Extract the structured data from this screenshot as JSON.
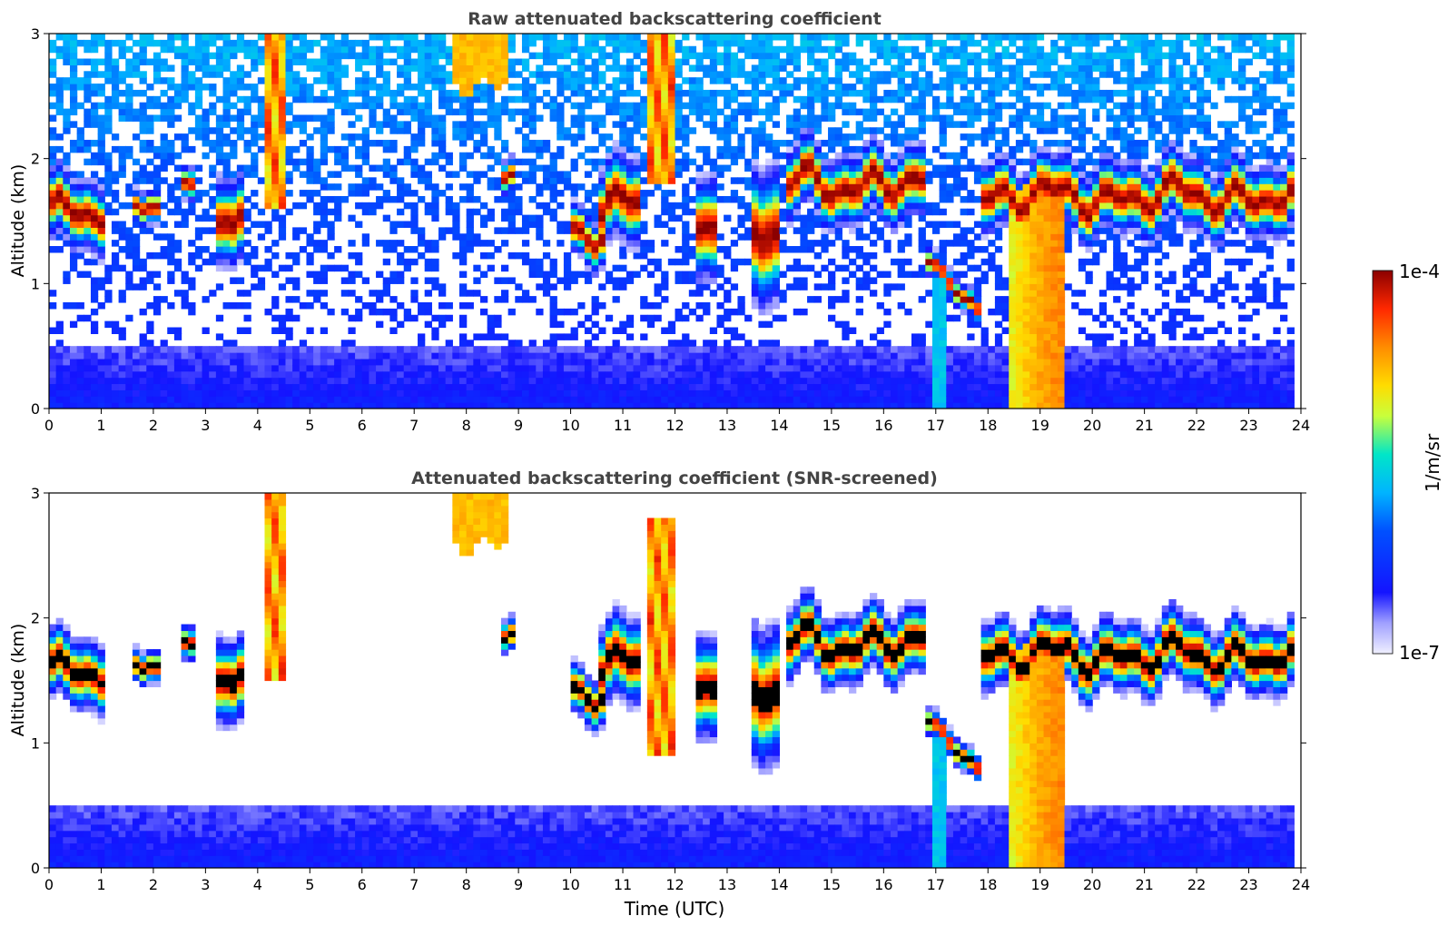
{
  "chart_data": [
    {
      "type": "heatmap",
      "title": "Raw attenuated backscattering coefficient",
      "xlabel": "",
      "ylabel": "Altitude (km)",
      "xlim": [
        0,
        24
      ],
      "ylim": [
        0,
        3
      ],
      "xticks": [
        "0",
        "1",
        "2",
        "3",
        "4",
        "5",
        "6",
        "7",
        "8",
        "9",
        "10",
        "11",
        "12",
        "13",
        "14",
        "15",
        "16",
        "17",
        "18",
        "19",
        "20",
        "21",
        "22",
        "23",
        "24"
      ],
      "yticks": [
        "0",
        "1",
        "2",
        "3"
      ],
      "data_end_hour": 23.8,
      "features": [
        {
          "kind": "cloud_layer",
          "hours": [
            0.0,
            1.1
          ],
          "altitude_km": [
            1.4,
            1.8
          ]
        },
        {
          "kind": "cloud_layer",
          "hours": [
            1.6,
            2.1
          ],
          "altitude_km": [
            1.5,
            1.7
          ]
        },
        {
          "kind": "cloud_layer",
          "hours": [
            2.5,
            2.8
          ],
          "altitude_km": [
            1.6,
            1.8
          ]
        },
        {
          "kind": "cloud_layer",
          "hours": [
            3.2,
            3.7
          ],
          "altitude_km": [
            1.3,
            1.8
          ]
        },
        {
          "kind": "cloud_column",
          "hours": [
            4.1,
            4.5
          ],
          "altitude_km": [
            1.6,
            3.0
          ]
        },
        {
          "kind": "high_cloud",
          "hours": [
            7.7,
            8.8
          ],
          "altitude_km": [
            2.6,
            3.0
          ]
        },
        {
          "kind": "cloud_layer",
          "hours": [
            8.7,
            8.9
          ],
          "altitude_km": [
            1.7,
            1.9
          ]
        },
        {
          "kind": "cloud_layer",
          "hours": [
            10.0,
            10.6
          ],
          "altitude_km": [
            1.3,
            1.6
          ]
        },
        {
          "kind": "cloud_layer",
          "hours": [
            10.6,
            11.3
          ],
          "altitude_km": [
            1.4,
            1.9
          ]
        },
        {
          "kind": "cloud_column",
          "hours": [
            11.5,
            12.0
          ],
          "altitude_km": [
            1.8,
            3.0
          ]
        },
        {
          "kind": "cloud_layer",
          "hours": [
            12.4,
            12.8
          ],
          "altitude_km": [
            1.2,
            1.8
          ]
        },
        {
          "kind": "cloud_layer",
          "hours": [
            13.5,
            14.0
          ],
          "altitude_km": [
            1.0,
            1.8
          ]
        },
        {
          "kind": "cloud_layer",
          "hours": [
            14.1,
            16.8
          ],
          "altitude_km": [
            1.6,
            2.0
          ]
        },
        {
          "kind": "descending_layer",
          "hours": [
            16.8,
            17.8
          ],
          "altitude_km": [
            0.8,
            1.2
          ]
        },
        {
          "kind": "precipitation",
          "hours": [
            16.9,
            17.2
          ],
          "altitude_km": [
            0.0,
            1.0
          ]
        },
        {
          "kind": "precipitation",
          "hours": [
            18.4,
            19.5
          ],
          "altitude_km": [
            0.0,
            1.8
          ]
        },
        {
          "kind": "cloud_layer",
          "hours": [
            17.9,
            23.8
          ],
          "altitude_km": [
            1.5,
            1.9
          ]
        },
        {
          "kind": "boundary_layer",
          "hours": [
            0.0,
            23.8
          ],
          "altitude_km": [
            0.0,
            0.5
          ]
        }
      ]
    },
    {
      "type": "heatmap",
      "title": "Attenuated backscattering coefficient (SNR-screened)",
      "xlabel": "Time (UTC)",
      "ylabel": "Altitude (km)",
      "xlim": [
        0,
        24
      ],
      "ylim": [
        0,
        3
      ],
      "xticks": [
        "0",
        "1",
        "2",
        "3",
        "4",
        "5",
        "6",
        "7",
        "8",
        "9",
        "10",
        "11",
        "12",
        "13",
        "14",
        "15",
        "16",
        "17",
        "18",
        "19",
        "20",
        "21",
        "22",
        "23",
        "24"
      ],
      "yticks": [
        "0",
        "1",
        "2",
        "3"
      ],
      "data_end_hour": 23.8,
      "features": [
        {
          "kind": "cloud_layer",
          "hours": [
            0.0,
            1.1
          ],
          "altitude_km": [
            1.4,
            1.8
          ]
        },
        {
          "kind": "cloud_layer",
          "hours": [
            1.6,
            2.1
          ],
          "altitude_km": [
            1.5,
            1.7
          ]
        },
        {
          "kind": "cloud_layer",
          "hours": [
            2.5,
            2.8
          ],
          "altitude_km": [
            1.6,
            1.8
          ]
        },
        {
          "kind": "cloud_layer",
          "hours": [
            3.2,
            3.7
          ],
          "altitude_km": [
            1.3,
            1.8
          ]
        },
        {
          "kind": "cloud_column",
          "hours": [
            4.1,
            4.5
          ],
          "altitude_km": [
            1.5,
            3.0
          ]
        },
        {
          "kind": "high_cloud",
          "hours": [
            7.7,
            8.8
          ],
          "altitude_km": [
            2.6,
            3.0
          ]
        },
        {
          "kind": "cloud_layer",
          "hours": [
            8.7,
            8.9
          ],
          "altitude_km": [
            1.7,
            1.9
          ]
        },
        {
          "kind": "cloud_layer",
          "hours": [
            10.0,
            10.6
          ],
          "altitude_km": [
            1.3,
            1.6
          ]
        },
        {
          "kind": "cloud_layer",
          "hours": [
            10.6,
            11.3
          ],
          "altitude_km": [
            1.4,
            1.9
          ]
        },
        {
          "kind": "cloud_column",
          "hours": [
            11.5,
            12.0
          ],
          "altitude_km": [
            0.9,
            2.8
          ]
        },
        {
          "kind": "cloud_layer",
          "hours": [
            12.4,
            12.8
          ],
          "altitude_km": [
            1.2,
            1.8
          ]
        },
        {
          "kind": "cloud_layer",
          "hours": [
            13.5,
            14.0
          ],
          "altitude_km": [
            1.0,
            1.8
          ]
        },
        {
          "kind": "cloud_layer",
          "hours": [
            14.1,
            16.8
          ],
          "altitude_km": [
            1.6,
            2.0
          ]
        },
        {
          "kind": "descending_layer",
          "hours": [
            16.8,
            17.8
          ],
          "altitude_km": [
            0.8,
            1.2
          ]
        },
        {
          "kind": "precipitation",
          "hours": [
            16.9,
            17.2
          ],
          "altitude_km": [
            0.0,
            1.0
          ]
        },
        {
          "kind": "precipitation",
          "hours": [
            18.4,
            19.5
          ],
          "altitude_km": [
            0.0,
            1.8
          ]
        },
        {
          "kind": "cloud_layer",
          "hours": [
            17.9,
            23.8
          ],
          "altitude_km": [
            1.5,
            1.9
          ]
        },
        {
          "kind": "boundary_layer",
          "hours": [
            0.0,
            23.8
          ],
          "altitude_km": [
            0.0,
            0.5
          ]
        }
      ]
    }
  ],
  "colorbar": {
    "label": "1/m/sr",
    "max_label": "1e-4",
    "min_label": "1e-7",
    "scale": "log",
    "colormap": [
      "#f0f0ff",
      "#1414ff",
      "#00b4ff",
      "#00e6c8",
      "#c8ff3c",
      "#ffdc00",
      "#ff8c00",
      "#ff2800",
      "#8b0000"
    ]
  }
}
